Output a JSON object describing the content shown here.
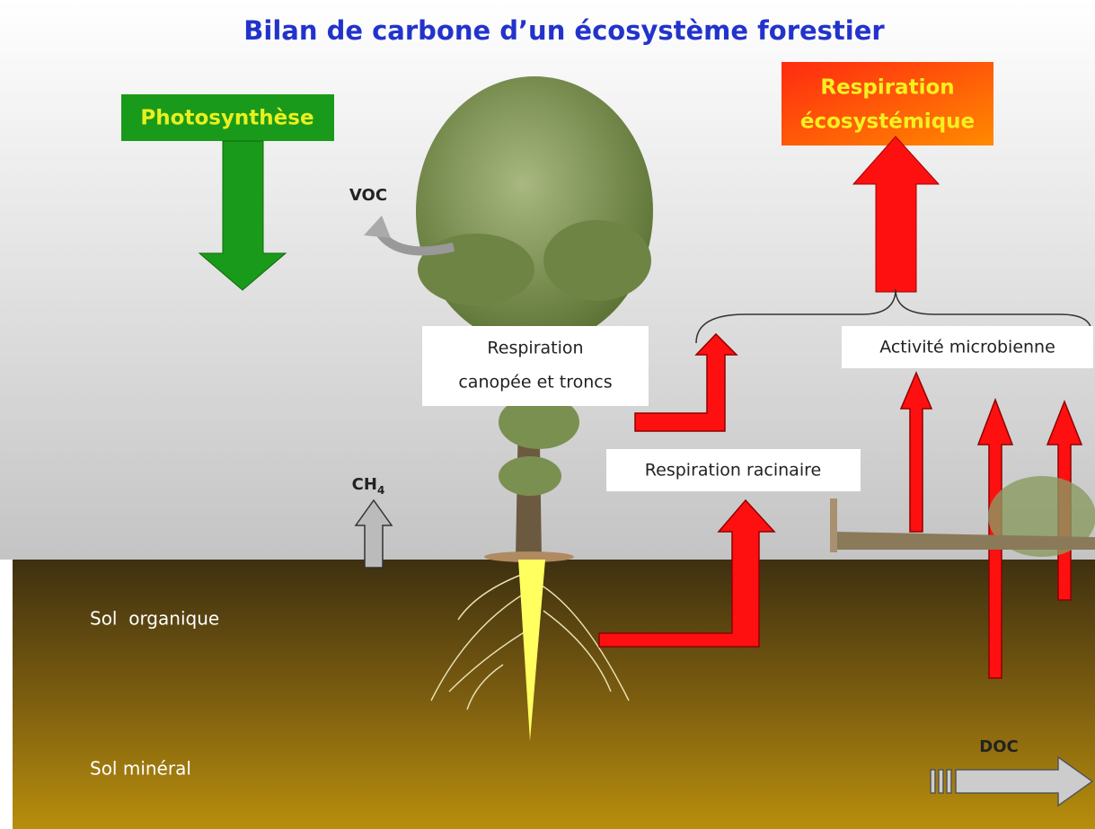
{
  "title": "Bilan de carbone d’un écosystème forestier",
  "labels": {
    "photosynthesis": "Photosynthèse",
    "ecosystem_respiration": [
      "Respiration",
      "écosystémique"
    ],
    "voc": "VOC",
    "canopy_respiration": [
      "Respiration",
      "canopée et troncs"
    ],
    "microbial_activity": "Activité microbienne",
    "root_respiration": "Respiration racinaire",
    "methane": {
      "base": "CH",
      "subscript": "4"
    },
    "organic_soil": "Sol  organique",
    "mineral_soil": "Sol minéral",
    "doc": "DOC"
  }
}
